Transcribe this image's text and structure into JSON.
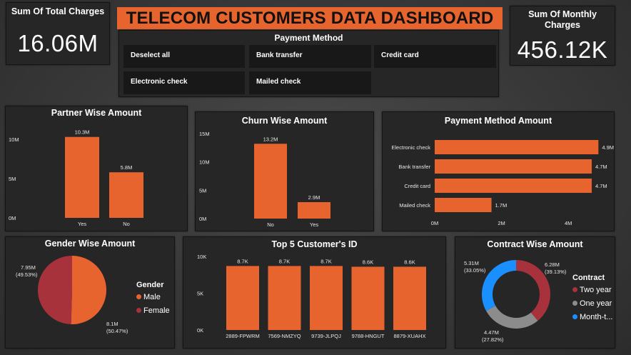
{
  "banner": {
    "title": "TELECOM CUSTOMERS DATA DASHBOARD"
  },
  "kpi_left": {
    "label": "Sum Of Total Charges",
    "value": "16.06M"
  },
  "kpi_right": {
    "label": "Sum Of Monthly Charges",
    "value": "456.12K"
  },
  "slicer": {
    "title": "Payment Method",
    "options": [
      "Deselect all",
      "Bank transfer",
      "Credit card",
      "Electronic check",
      "Mailed check"
    ]
  },
  "colors": {
    "orange": "#e8642f",
    "dark_red": "#a8323b",
    "gray": "#8c8c8c",
    "blue": "#1a8fff"
  },
  "chart_data": [
    {
      "id": "partner",
      "type": "bar",
      "title": "Partner Wise Amount",
      "categories": [
        "Yes",
        "No"
      ],
      "values": [
        10.3,
        5.8
      ],
      "labels": [
        "10.3M",
        "5.8M"
      ],
      "yticks": [
        "0M",
        "5M",
        "10M"
      ],
      "ylim": [
        0,
        12
      ]
    },
    {
      "id": "churn",
      "type": "bar",
      "title": "Churn Wise Amount",
      "categories": [
        "No",
        "Yes"
      ],
      "values": [
        13.2,
        2.9
      ],
      "labels": [
        "13.2M",
        "2.9M"
      ],
      "yticks": [
        "0M",
        "5M",
        "10M",
        "15M"
      ],
      "ylim": [
        0,
        15
      ]
    },
    {
      "id": "payment",
      "type": "bar",
      "orientation": "horizontal",
      "title": "Payment Method Amount",
      "categories": [
        "Electronic check",
        "Bank transfer",
        "Credit card",
        "Mailed check"
      ],
      "values": [
        4.9,
        4.7,
        4.7,
        1.7
      ],
      "labels": [
        "4.9M",
        "4.7M",
        "4.7M",
        "1.7M"
      ],
      "xticks": [
        "0M",
        "2M",
        "4M"
      ],
      "xlim": [
        0,
        5
      ]
    },
    {
      "id": "gender",
      "type": "pie",
      "title": "Gender Wise Amount",
      "legend_title": "Gender",
      "series": [
        {
          "name": "Male",
          "value": 8.1,
          "label": "8.1M",
          "pct": "(50.47%)",
          "color": "#e8642f"
        },
        {
          "name": "Female",
          "value": 7.95,
          "label": "7.95M",
          "pct": "(49.53%)",
          "color": "#a8323b"
        }
      ]
    },
    {
      "id": "top5",
      "type": "bar",
      "title": "Top 5 Customer's ID",
      "categories": [
        "2889-FPWRM",
        "7569-NMZYQ",
        "9739-JLPQJ",
        "9788-HNGUT",
        "8879-XUAHX"
      ],
      "values": [
        8.7,
        8.7,
        8.7,
        8.6,
        8.6
      ],
      "labels": [
        "8.7K",
        "8.7K",
        "8.7K",
        "8.6K",
        "8.6K"
      ],
      "yticks": [
        "0K",
        "5K",
        "10K"
      ],
      "ylim": [
        0,
        10
      ]
    },
    {
      "id": "contract",
      "type": "pie",
      "donut": true,
      "title": "Contract Wise Amount",
      "legend_title": "Contract",
      "series": [
        {
          "name": "Two year",
          "value": 6.28,
          "label": "6.28M",
          "pct": "(39.13%)",
          "color": "#a8323b"
        },
        {
          "name": "One year",
          "value": 4.47,
          "label": "4.47M",
          "pct": "(27.82%)",
          "color": "#8c8c8c"
        },
        {
          "name": "Month-t...",
          "value": 5.31,
          "label": "5.31M",
          "pct": "(33.05%)",
          "color": "#1a8fff"
        }
      ]
    }
  ]
}
